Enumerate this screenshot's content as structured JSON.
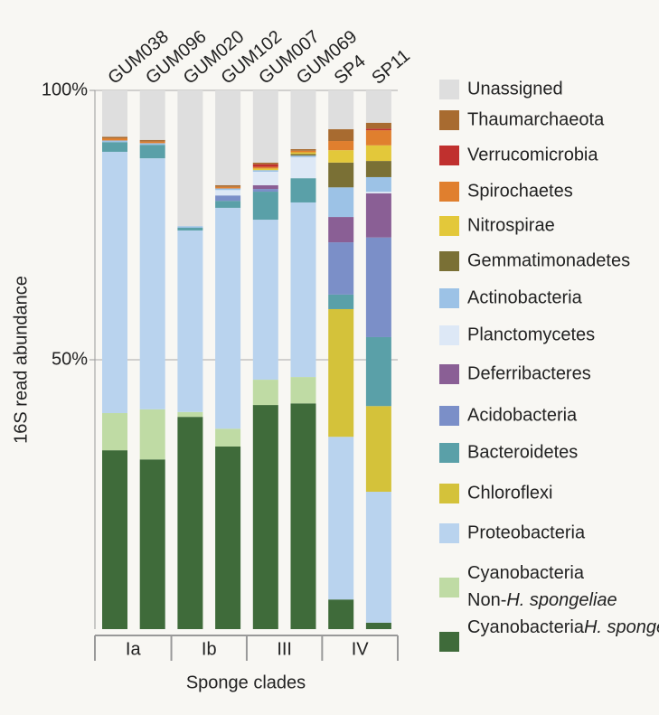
{
  "chart_data": {
    "type": "stacked_bar",
    "y_label": "16S read abundance",
    "x_label": "Sponge clades",
    "categories": [
      "GUM038",
      "GUM096",
      "GUM020",
      "GUM102",
      "GUM007",
      "GUM069",
      "SP4",
      "SP11"
    ],
    "clades": [
      "Ia",
      "Ia",
      "Ib",
      "Ib",
      "III",
      "III",
      "IV",
      "IV"
    ],
    "ylim": [
      0,
      100
    ],
    "yticks": [
      {
        "value": 50,
        "label": "50%"
      },
      {
        "value": 100,
        "label": "100%"
      }
    ],
    "grid": true,
    "series": [
      {
        "name": "Cyanobacteria H. spongeliae",
        "color": "#3f6b3a",
        "values": [
          33.2,
          31.5,
          39.4,
          33.9,
          41.6,
          41.9,
          5.5,
          1.2
        ]
      },
      {
        "name": "Cyanobacteria Non-H. spongeliae",
        "color": "#bfdba4",
        "values": [
          6.9,
          9.3,
          0.9,
          3.3,
          4.7,
          4.9,
          0,
          0
        ]
      },
      {
        "name": "Proteobacteria",
        "color": "#b9d3ee",
        "values": [
          48.5,
          46.6,
          33.7,
          41.0,
          29.7,
          32.4,
          30.2,
          24.3
        ]
      },
      {
        "name": "Chloroflexi",
        "color": "#d4c23a",
        "values": [
          0,
          0,
          0,
          0,
          0,
          0,
          23.7,
          15.9
        ]
      },
      {
        "name": "Bacteroidetes",
        "color": "#5aa0a8",
        "values": [
          1.8,
          2.5,
          0.5,
          1.3,
          5.2,
          4.5,
          2.7,
          12.8
        ]
      },
      {
        "name": "Acidobacteria",
        "color": "#7b8fc8",
        "values": [
          0,
          0,
          0,
          1.0,
          0.5,
          0,
          9.7,
          18.5
        ]
      },
      {
        "name": "Deferribacteres",
        "color": "#8a5f95",
        "values": [
          0,
          0,
          0,
          0,
          0.7,
          0,
          4.7,
          8.2
        ]
      },
      {
        "name": "Planctomycetes",
        "color": "#dde8f6",
        "values": [
          0,
          0,
          0,
          1.0,
          2.5,
          3.9,
          0,
          0.3
        ]
      },
      {
        "name": "Actinobacteria",
        "color": "#9cc2e6",
        "values": [
          0.3,
          0.3,
          0.3,
          0.3,
          0.3,
          0.3,
          5.5,
          2.7
        ]
      },
      {
        "name": "Gemmatimonadetes",
        "color": "#7a7035",
        "values": [
          0,
          0,
          0,
          0,
          0,
          0.3,
          4.6,
          3.0
        ]
      },
      {
        "name": "Nitrospirae",
        "color": "#e3c83a",
        "values": [
          0,
          0,
          0,
          0,
          0.3,
          0.3,
          2.3,
          2.9
        ]
      },
      {
        "name": "Spirochaetes",
        "color": "#e07f2e",
        "values": [
          0.4,
          0.3,
          0,
          0.3,
          0.3,
          0.3,
          1.7,
          2.8
        ]
      },
      {
        "name": "Verrucomicrobia",
        "color": "#c0302e",
        "values": [
          0,
          0,
          0,
          0,
          0.5,
          0,
          0,
          0.3
        ]
      },
      {
        "name": "Thaumarchaeota",
        "color": "#a86b30",
        "values": [
          0.3,
          0.3,
          0,
          0.3,
          0.3,
          0.3,
          2.2,
          1.1
        ]
      },
      {
        "name": "Unassigned",
        "color": "#dedede",
        "values": [
          8.6,
          9.2,
          25.2,
          17.6,
          13.4,
          10.9,
          7.2,
          6.0
        ]
      }
    ]
  }
}
